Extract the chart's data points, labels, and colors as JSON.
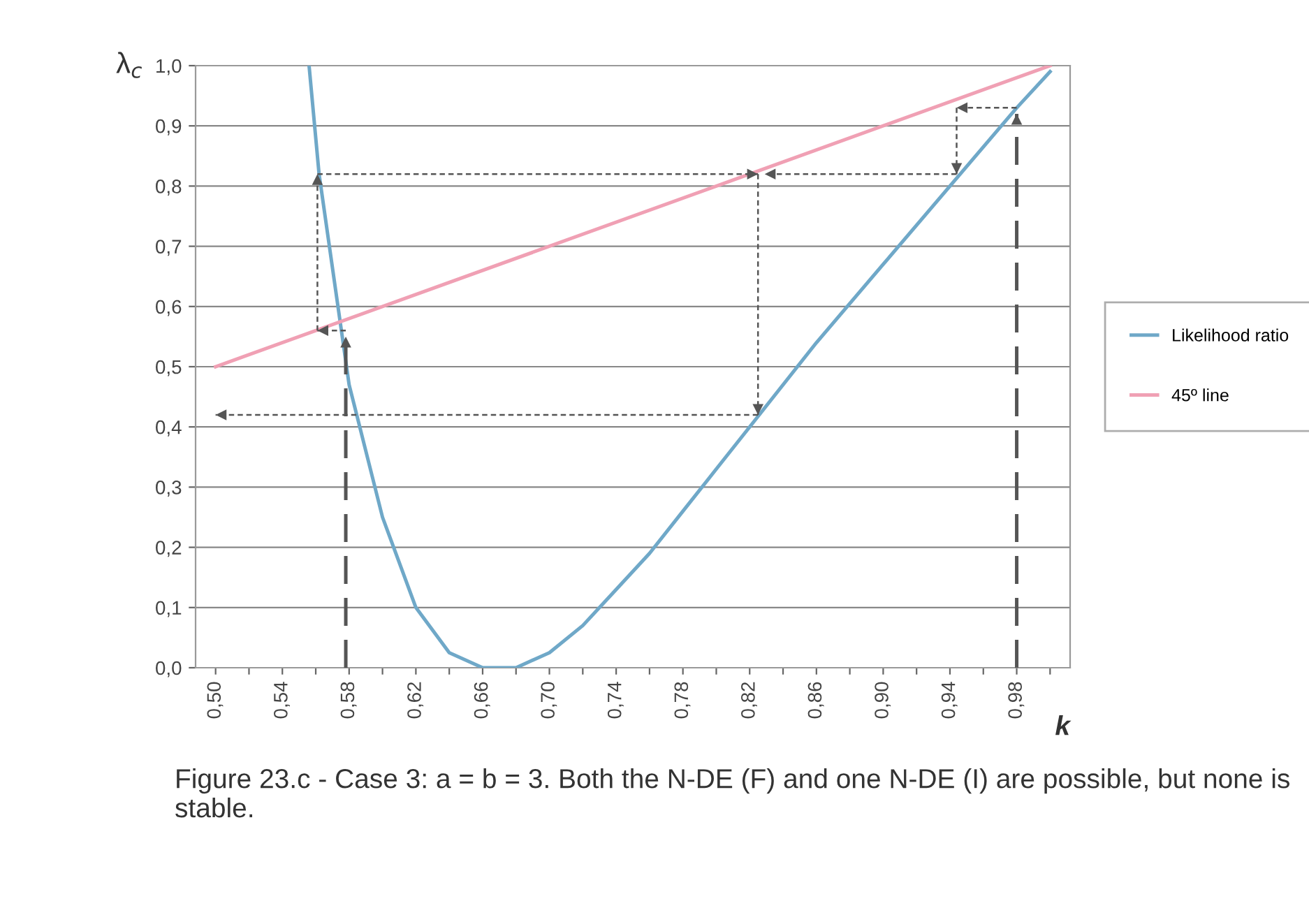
{
  "chart_data": {
    "type": "line",
    "ylabel": "λ$_{c}$",
    "xlabel": "k",
    "annotations": [
      "Figure 23.c - Case 3: a = b = 3. Both the N-DE (F) and one N-DE (I) are possible, but none is stable."
    ],
    "xlim": [
      0.488,
      1.012
    ],
    "ylim": [
      0.0,
      1.0
    ],
    "xticks": [
      {
        "value": 0.5,
        "label": "0,50"
      },
      {
        "value": 0.52,
        "label": null
      },
      {
        "value": 0.54,
        "label": "0,54"
      },
      {
        "value": 0.56,
        "label": null
      },
      {
        "value": 0.58,
        "label": "0,58"
      },
      {
        "value": 0.6,
        "label": null
      },
      {
        "value": 0.62,
        "label": "0,62"
      },
      {
        "value": 0.64,
        "label": null
      },
      {
        "value": 0.66,
        "label": "0,66"
      },
      {
        "value": 0.68,
        "label": null
      },
      {
        "value": 0.7,
        "label": "0,70"
      },
      {
        "value": 0.72,
        "label": null
      },
      {
        "value": 0.74,
        "label": "0,74"
      },
      {
        "value": 0.76,
        "label": null
      },
      {
        "value": 0.78,
        "label": "0,78"
      },
      {
        "value": 0.8,
        "label": null
      },
      {
        "value": 0.82,
        "label": "0,82"
      },
      {
        "value": 0.84,
        "label": null
      },
      {
        "value": 0.86,
        "label": "0,86"
      },
      {
        "value": 0.88,
        "label": null
      },
      {
        "value": 0.9,
        "label": "0,90"
      },
      {
        "value": 0.92,
        "label": null
      },
      {
        "value": 0.94,
        "label": "0,94"
      },
      {
        "value": 0.96,
        "label": null
      },
      {
        "value": 0.98,
        "label": "0,98"
      },
      {
        "value": 1.0,
        "label": null
      }
    ],
    "yticks": [
      {
        "value": 0.0,
        "label": "0,0"
      },
      {
        "value": 0.1,
        "label": "0,1"
      },
      {
        "value": 0.2,
        "label": "0,2"
      },
      {
        "value": 0.3,
        "label": "0,3"
      },
      {
        "value": 0.4,
        "label": "0,4"
      },
      {
        "value": 0.5,
        "label": "0,5"
      },
      {
        "value": 0.6,
        "label": "0,6"
      },
      {
        "value": 0.7,
        "label": "0,7"
      },
      {
        "value": 0.8,
        "label": "0,8"
      },
      {
        "value": 0.9,
        "label": "0,9"
      },
      {
        "value": 1.0,
        "label": "1,0"
      }
    ],
    "grid": "y",
    "legend": "right",
    "series": [
      {
        "name": "Likelihood ratio",
        "color": "#6fa8c8",
        "x": [
          0.556,
          0.562,
          0.58,
          0.6,
          0.62,
          0.64,
          0.66,
          0.68,
          0.7,
          0.72,
          0.74,
          0.76,
          0.78,
          0.8,
          0.82,
          0.86,
          0.9,
          0.94,
          0.98,
          1.0
        ],
        "values": [
          1.0,
          0.82,
          0.47,
          0.25,
          0.1,
          0.025,
          0.0,
          0.0,
          0.025,
          0.07,
          0.13,
          0.19,
          0.26,
          0.33,
          0.4,
          0.54,
          0.67,
          0.8,
          0.93,
          0.99
        ]
      },
      {
        "name": "45º line",
        "color": "#f0a0b4",
        "x": [
          0.5,
          1.0
        ],
        "values": [
          0.5,
          1.0
        ]
      },
      {
        "color": "#555555",
        "line_style": "dashed",
        "x": [
          0.578,
          0.578
        ],
        "values": [
          0.0,
          0.55
        ]
      },
      {
        "color": "#555555",
        "line_style": "dashed",
        "x": [
          0.98,
          0.98
        ],
        "values": [
          0.0,
          0.92
        ]
      },
      {
        "color": "#555555",
        "line_style": "dotted",
        "x": [
          0.578,
          0.561
        ],
        "values": [
          0.56,
          0.56
        ]
      },
      {
        "color": "#555555",
        "line_style": "dotted",
        "x": [
          0.561,
          0.561
        ],
        "values": [
          0.56,
          0.82
        ]
      },
      {
        "color": "#555555",
        "line_style": "dotted",
        "x": [
          0.561,
          0.825
        ],
        "values": [
          0.82,
          0.82
        ]
      },
      {
        "color": "#555555",
        "line_style": "dotted",
        "x": [
          0.825,
          0.825
        ],
        "values": [
          0.82,
          0.42
        ]
      },
      {
        "color": "#555555",
        "line_style": "dotted",
        "x": [
          0.825,
          0.5
        ],
        "values": [
          0.42,
          0.42
        ]
      },
      {
        "color": "#555555",
        "line_style": "dotted",
        "x": [
          0.98,
          0.944
        ],
        "values": [
          0.93,
          0.93
        ]
      },
      {
        "color": "#555555",
        "line_style": "dotted",
        "x": [
          0.944,
          0.944
        ],
        "values": [
          0.93,
          0.82
        ]
      },
      {
        "color": "#555555",
        "line_style": "dotted",
        "x": [
          0.944,
          0.829
        ],
        "values": [
          0.82,
          0.82
        ]
      }
    ]
  }
}
